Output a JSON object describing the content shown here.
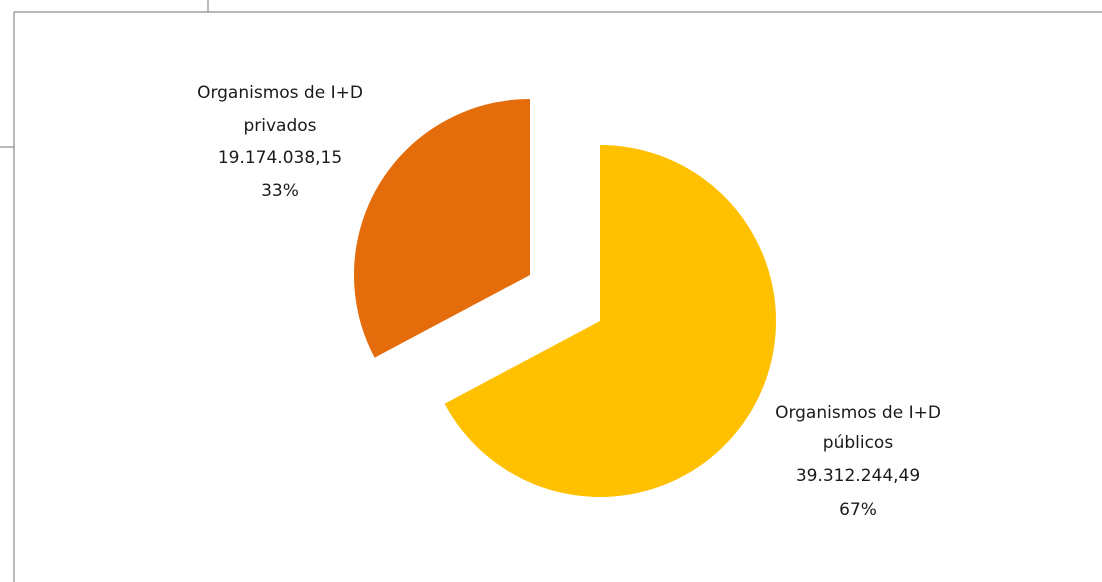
{
  "chart_data": {
    "type": "pie",
    "exploded": true,
    "slices": [
      {
        "name_line1": "Organismos de I+D",
        "name_line2": "públicos",
        "value": 39312244.49,
        "value_label": "39.312.244,49",
        "percent_label": "67%",
        "color": "#FFC000"
      },
      {
        "name_line1": "Organismos de I+D",
        "name_line2": "privados",
        "value": 19174038.15,
        "value_label": "19.174.038,15",
        "percent_label": "33%",
        "color": "#E46C0A"
      }
    ]
  }
}
